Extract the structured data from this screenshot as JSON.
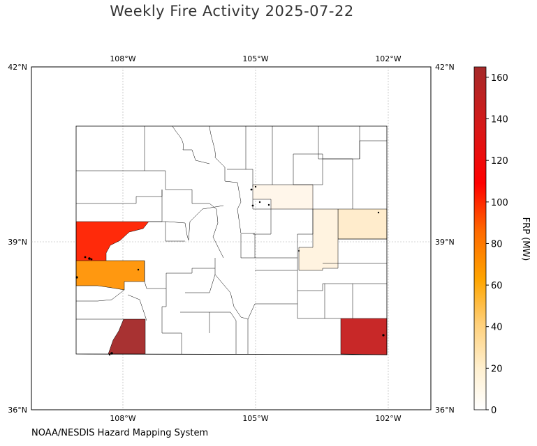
{
  "title": "Weekly Fire Activity 2025-07-22",
  "source": "NOAA/NESDIS Hazard Mapping System",
  "axes": {
    "lon_ticks": [
      "108°W",
      "105°W",
      "102°W"
    ],
    "lat_ticks": [
      "42°N",
      "39°N",
      "36°N"
    ]
  },
  "colorbar": {
    "label": "FRP (MW)",
    "ticks": [
      "0",
      "20",
      "40",
      "60",
      "80",
      "100",
      "120",
      "140",
      "160"
    ],
    "range": [
      0,
      165
    ],
    "colors": [
      "#ffffff",
      "#fff0d0",
      "#ffd07a",
      "#ffa500",
      "#ff6a00",
      "#ff0000",
      "#d81818",
      "#a52a2a"
    ]
  },
  "chart_data": {
    "type": "choropleth",
    "region": "Colorado counties",
    "extent": {
      "lon": [
        -110,
        -101
      ],
      "lat": [
        36,
        42
      ]
    },
    "highlighted_counties": [
      {
        "area": "northwest",
        "frp": 95
      },
      {
        "area": "west",
        "frp": 62
      },
      {
        "area": "southwest",
        "frp": 160
      },
      {
        "area": "southeast",
        "frp": 140
      },
      {
        "area": "northeast",
        "frp": 12
      },
      {
        "area": "east-central",
        "frp": 6
      },
      {
        "area": "front range",
        "frp": 3
      }
    ]
  }
}
